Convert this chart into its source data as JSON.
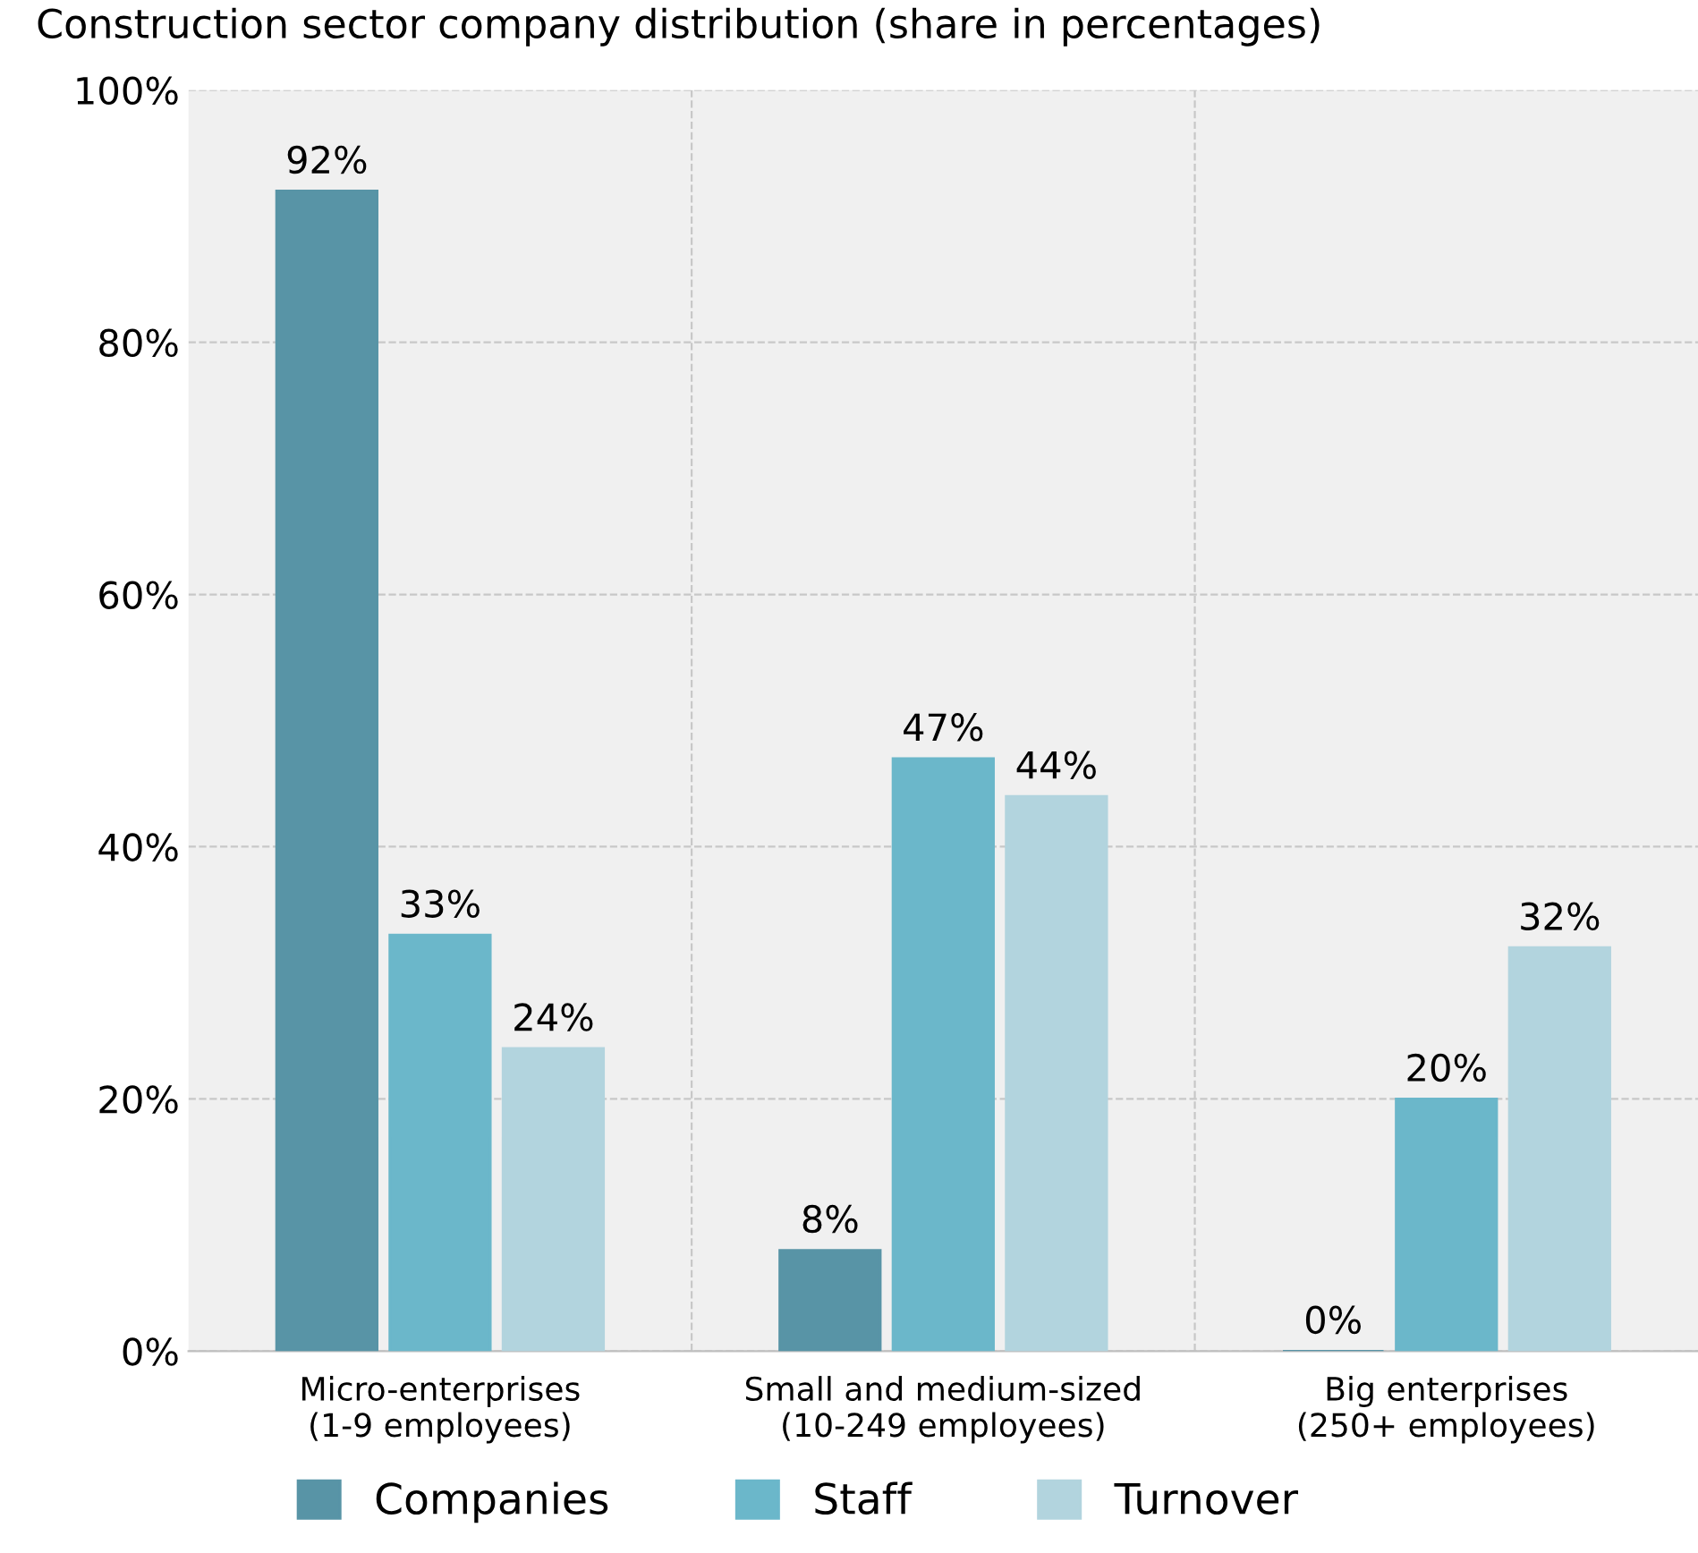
{
  "chart_data": {
    "type": "bar",
    "title": "Construction sector company distribution (share in percentages)",
    "categories": [
      "Micro-enterprises\n(1-9 employees)",
      "Small and medium-sized\n(10-249 employees)",
      "Big enterprises\n(250+ employees)"
    ],
    "series": [
      {
        "name": "Companies",
        "color": "#5894a6",
        "values": [
          92,
          8,
          0
        ],
        "value_labels": [
          "92%",
          "8%",
          "0%"
        ]
      },
      {
        "name": "Staff",
        "color": "#6bb7ca",
        "values": [
          33,
          47,
          20
        ],
        "value_labels": [
          "33%",
          "47%",
          "20%"
        ]
      },
      {
        "name": "Turnover",
        "color": "#b2d4de",
        "values": [
          24,
          44,
          32
        ],
        "value_labels": [
          "24%",
          "44%",
          "32%"
        ]
      }
    ],
    "ylim": [
      0,
      100
    ],
    "yticks": [
      {
        "value": 0,
        "label": "0%"
      },
      {
        "value": 20,
        "label": "20%"
      },
      {
        "value": 40,
        "label": "40%"
      },
      {
        "value": 60,
        "label": "60%"
      },
      {
        "value": 80,
        "label": "80%"
      },
      {
        "value": 100,
        "label": "100%"
      }
    ],
    "grid": true,
    "legend": "bottom"
  }
}
